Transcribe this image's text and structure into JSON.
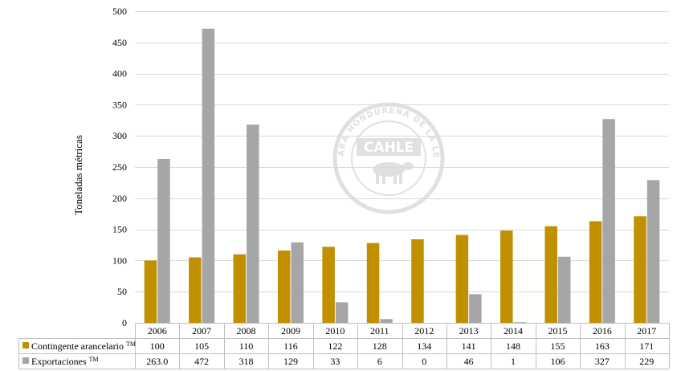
{
  "chart_data": {
    "type": "bar",
    "title": "",
    "xlabel": "",
    "ylabel": "Toneladas métricas",
    "ylim": [
      0,
      500
    ],
    "yticks": [
      0,
      50,
      100,
      150,
      200,
      250,
      300,
      350,
      400,
      450,
      500
    ],
    "grid": true,
    "legend": "data-table",
    "categories": [
      "2006",
      "2007",
      "2008",
      "2009",
      "2010",
      "2011",
      "2012",
      "2013",
      "2014",
      "2015",
      "2016",
      "2017"
    ],
    "series": [
      {
        "name": "Contingente arancelario TM",
        "color": "#C09000",
        "values": [
          100,
          105,
          110,
          116,
          122,
          128,
          134,
          141,
          148,
          155,
          163,
          171
        ],
        "labels": [
          "100",
          "105",
          "110",
          "116",
          "122",
          "128",
          "134",
          "141",
          "148",
          "155",
          "163",
          "171"
        ]
      },
      {
        "name": "Exportaciones TM",
        "color": "#A6A6A6",
        "values": [
          263,
          472,
          318,
          129,
          33,
          6,
          0,
          46,
          1,
          106,
          327,
          229
        ],
        "labels": [
          "263.0",
          "472",
          "318",
          "129",
          "33",
          "6",
          "0",
          "46",
          "1",
          "106",
          "327",
          "229"
        ]
      }
    ]
  },
  "watermark": {
    "logo_text": "CAHLE",
    "ring_text": "CÁMARA HONDUREÑA DE LA LECHE",
    "color": "#E0E0E0",
    "icon": "cow-icon"
  }
}
